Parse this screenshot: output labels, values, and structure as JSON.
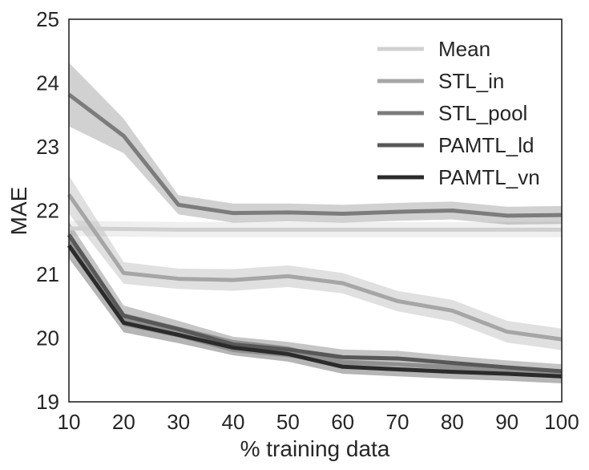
{
  "chart_data": {
    "type": "line",
    "title": "",
    "xlabel": "% training data",
    "ylabel": "MAE",
    "x": [
      10,
      20,
      30,
      40,
      50,
      60,
      70,
      80,
      90,
      100
    ],
    "xlim": [
      10,
      100
    ],
    "ylim": [
      19,
      25
    ],
    "xticks": [
      10,
      20,
      30,
      40,
      50,
      60,
      70,
      80,
      90,
      100
    ],
    "yticks": [
      19,
      20,
      21,
      22,
      23,
      24,
      25
    ],
    "grid": false,
    "legend_position": "top-right",
    "series": [
      {
        "name": "Mean",
        "color": "#d0d0d0",
        "values": [
          21.72,
          21.71,
          21.7,
          21.7,
          21.7,
          21.7,
          21.7,
          21.7,
          21.7,
          21.7
        ],
        "band": [
          0.12,
          0.12,
          0.12,
          0.12,
          0.12,
          0.12,
          0.12,
          0.12,
          0.12,
          0.12
        ]
      },
      {
        "name": "STL_in",
        "color": "#a6a6a6",
        "values": [
          22.25,
          21.02,
          20.93,
          20.91,
          20.97,
          20.86,
          20.58,
          20.43,
          20.1,
          19.98
        ],
        "band": [
          0.3,
          0.17,
          0.16,
          0.17,
          0.17,
          0.16,
          0.16,
          0.17,
          0.17,
          0.17
        ]
      },
      {
        "name": "STL_pool",
        "color": "#7c7c7c",
        "values": [
          23.82,
          23.17,
          22.09,
          21.96,
          21.97,
          21.95,
          21.98,
          22.0,
          21.92,
          21.93
        ],
        "band": [
          0.5,
          0.27,
          0.15,
          0.15,
          0.14,
          0.14,
          0.14,
          0.14,
          0.14,
          0.14
        ]
      },
      {
        "name": "PAMTL_ld",
        "color": "#585858",
        "values": [
          21.62,
          20.35,
          20.14,
          19.9,
          19.82,
          19.7,
          19.68,
          19.61,
          19.54,
          19.48
        ],
        "band": [
          0.2,
          0.16,
          0.13,
          0.12,
          0.12,
          0.12,
          0.12,
          0.11,
          0.11,
          0.11
        ]
      },
      {
        "name": "PAMTL_vn",
        "color": "#2b2b2b",
        "values": [
          21.45,
          20.24,
          20.05,
          19.85,
          19.75,
          19.55,
          19.51,
          19.47,
          19.44,
          19.4
        ],
        "band": [
          0.2,
          0.15,
          0.13,
          0.12,
          0.12,
          0.11,
          0.11,
          0.11,
          0.11,
          0.11
        ]
      }
    ]
  }
}
